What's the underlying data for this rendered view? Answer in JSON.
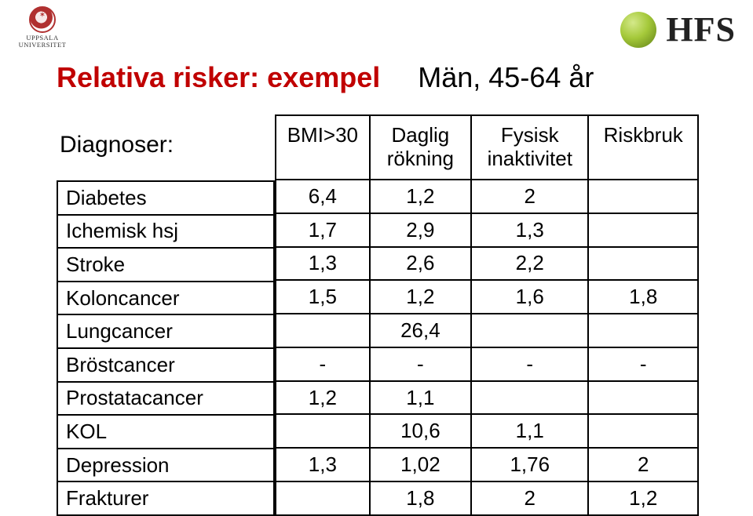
{
  "logos": {
    "uppsala_line1": "UPPSALA",
    "uppsala_line2": "UNIVERSITET",
    "hfs": "HFS"
  },
  "title": {
    "main": "Relativa risker: exempel",
    "sub": "Män, 45-64 år"
  },
  "labels": {
    "diagnoser": "Diagnoser:"
  },
  "table": {
    "columns": [
      "BMI>30",
      "Daglig rökning",
      "Fysisk inaktivitet",
      "Riskbruk"
    ],
    "header_l2": {
      "1": "rökning",
      "2": "inaktivitet"
    },
    "header_l1": {
      "0": "BMI>30",
      "1": "Daglig",
      "2": "Fysisk",
      "3": "Riskbruk"
    },
    "diagnoses": [
      "Diabetes",
      "Ichemisk hsj",
      "Stroke",
      "Koloncancer",
      "Lungcancer",
      "Bröstcancer",
      "Prostatacancer",
      "KOL",
      "Depression",
      "Frakturer"
    ],
    "rows": [
      [
        "6,4",
        "1,2",
        "2",
        ""
      ],
      [
        "1,7",
        "2,9",
        "1,3",
        ""
      ],
      [
        "1,3",
        "2,6",
        "2,2",
        ""
      ],
      [
        "1,5",
        "1,2",
        "1,6",
        "1,8"
      ],
      [
        "",
        "26,4",
        "",
        ""
      ],
      [
        "-",
        "-",
        "-",
        "-"
      ],
      [
        "1,2",
        "1,1",
        "",
        ""
      ],
      [
        "",
        "10,6",
        "1,1",
        ""
      ],
      [
        "1,3",
        "1,02",
        "1,76",
        "2"
      ],
      [
        "",
        "1,8",
        "2",
        "1,2"
      ]
    ]
  },
  "style": {
    "title_color": "#c00000",
    "text_color": "#000000",
    "border_color": "#000000",
    "bg_color": "#ffffff",
    "title_fontsize": 36,
    "body_fontsize": 26,
    "diag_label_fontsize": 30
  }
}
